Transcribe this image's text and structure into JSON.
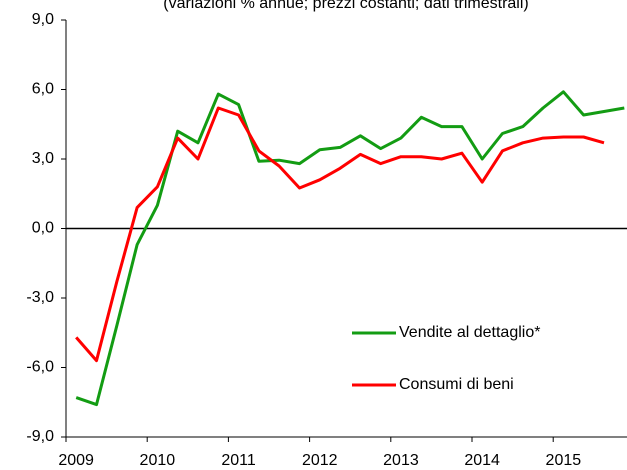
{
  "chart_data": {
    "type": "line",
    "title": "(variazioni % annue; prezzi costanti; dati trimestrali)",
    "categories": [
      "2009",
      null,
      null,
      null,
      "2010",
      null,
      null,
      null,
      "2011",
      null,
      null,
      null,
      "2012",
      null,
      null,
      null,
      "2013",
      null,
      null,
      null,
      "2014",
      null,
      null,
      null,
      "2015",
      null,
      null,
      null
    ],
    "series": [
      {
        "name": "Vendite al dettaglio*",
        "color": "#139c13",
        "values": [
          -7.3,
          -7.6,
          -4.2,
          -0.7,
          1.0,
          4.2,
          3.7,
          5.8,
          5.35,
          2.9,
          2.95,
          2.8,
          3.4,
          3.5,
          4.0,
          3.45,
          3.9,
          4.8,
          4.4,
          4.4,
          3.0,
          4.1,
          4.4,
          5.2,
          5.9,
          4.9,
          5.05,
          5.2
        ]
      },
      {
        "name": "Consumi di beni",
        "color": "#ff0000",
        "values": [
          -4.7,
          -5.7,
          -2.3,
          0.9,
          1.8,
          3.9,
          3.0,
          5.2,
          4.9,
          3.35,
          2.7,
          1.75,
          2.1,
          2.6,
          3.2,
          2.8,
          3.1,
          3.1,
          3.0,
          3.25,
          2.0,
          3.35,
          3.7,
          3.9,
          3.95,
          3.95,
          3.7,
          null
        ]
      }
    ],
    "ylim": [
      -9,
      9
    ],
    "yticks": [
      {
        "value": -9,
        "label": "-9,0"
      },
      {
        "value": -6,
        "label": "-6,0"
      },
      {
        "value": -3,
        "label": "-3,0"
      },
      {
        "value": 0,
        "label": "0,0"
      },
      {
        "value": 3,
        "label": "3,0"
      },
      {
        "value": 6,
        "label": "6,0"
      },
      {
        "value": 9,
        "label": "9,0"
      }
    ],
    "legend": "lower right"
  }
}
